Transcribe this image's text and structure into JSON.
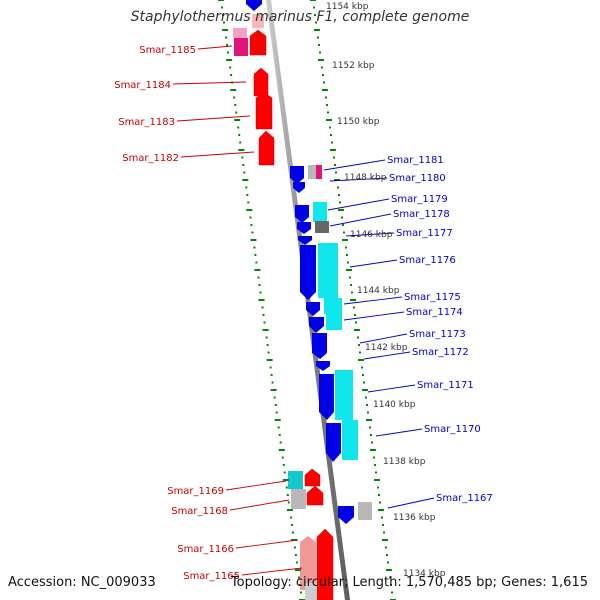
{
  "title": "Staphylothermus marinus F1, complete genome",
  "footer": {
    "accession": "Accession: NC_009033",
    "summary": "Topology: circular; Length: 1,570,485 bp; Genes: 1,615"
  },
  "colors": {
    "forward": "#ff0000",
    "forward_light": "#f29898",
    "reverse": "#0000e6",
    "cyan": "#11e6ec",
    "grey": "#b8b8b8",
    "darkgrey": "#666666",
    "magenta": "#e0157a",
    "pink": "#f4a0c8",
    "label_forward": "#cc0000",
    "label_reverse": "#0000cc",
    "tick": "#008800"
  },
  "scale_labels": [
    "1154 kbp",
    "1152 kbp",
    "1150 kbp",
    "1148 kbp",
    "1146 kbp",
    "1144 kbp",
    "1142 kbp",
    "1140 kbp",
    "1138 kbp",
    "1136 kbp",
    "1134 kbp"
  ],
  "forward_labels": [
    "Smar_1185",
    "Smar_1184",
    "Smar_1183",
    "Smar_1182",
    "Smar_1169",
    "Smar_1168",
    "Smar_1166",
    "Smar_1165"
  ],
  "reverse_labels": [
    "Smar_1181",
    "Smar_1180",
    "Smar_1179",
    "Smar_1178",
    "Smar_1177",
    "Smar_1176",
    "Smar_1175",
    "Smar_1174",
    "Smar_1173",
    "Smar_1172",
    "Smar_1171",
    "Smar_1170",
    "Smar_1167"
  ]
}
